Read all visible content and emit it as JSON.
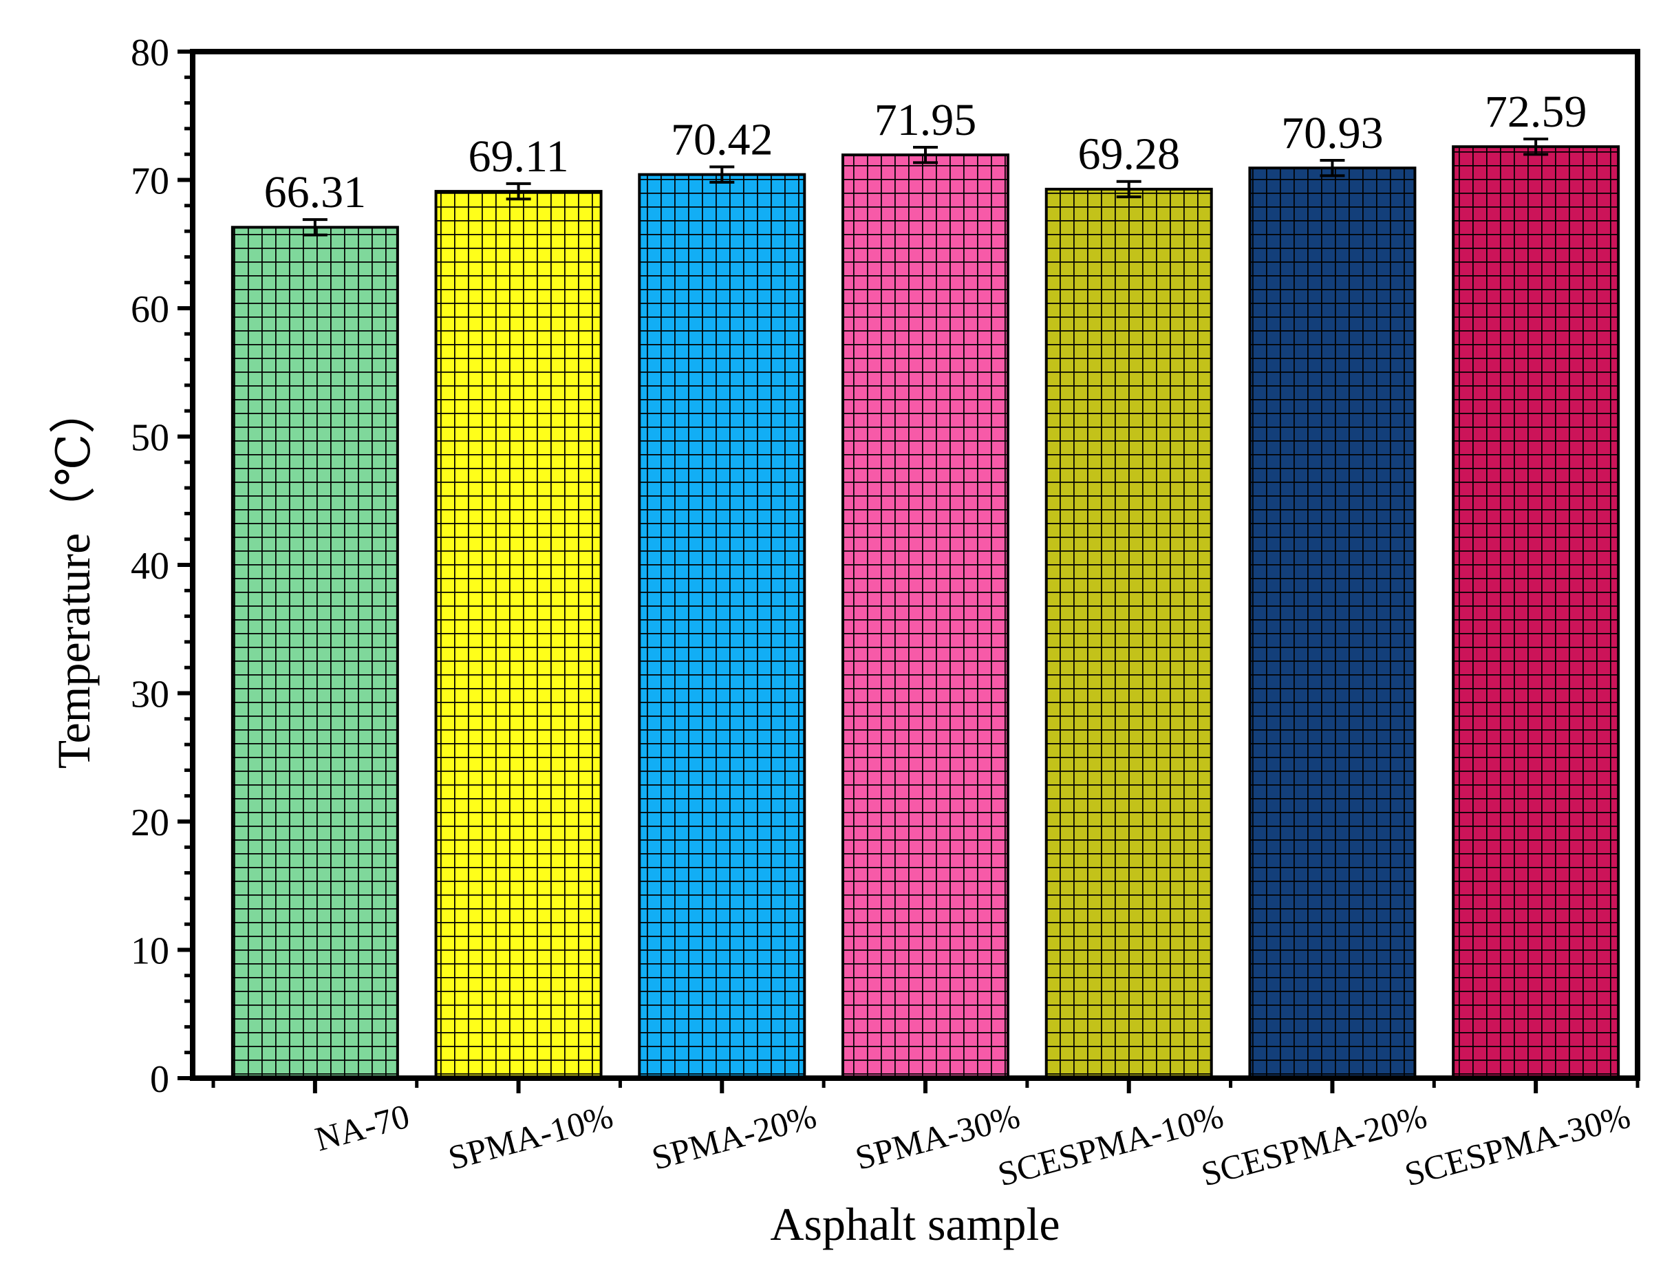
{
  "chart_data": {
    "type": "bar",
    "title": "",
    "xlabel": "Asphalt sample",
    "ylabel": "Temperature（℃）",
    "ylim": [
      0,
      80
    ],
    "yticks": [
      "0",
      "10",
      "20",
      "30",
      "40",
      "50",
      "60",
      "70",
      "80"
    ],
    "categories": [
      "NA-70",
      "SPMA-10%",
      "SPMA-20%",
      "SPMA-30%",
      "SCESPMA-10%",
      "SCESPMA-20%",
      "SCESPMA-30%"
    ],
    "values": [
      66.31,
      69.11,
      70.42,
      71.95,
      69.28,
      70.93,
      72.59
    ],
    "value_labels": [
      "66.31",
      "69.11",
      "70.42",
      "71.95",
      "69.28",
      "70.93",
      "72.59"
    ],
    "error": [
      0.6,
      0.6,
      0.6,
      0.6,
      0.6,
      0.6,
      0.6
    ],
    "colors": [
      "#7fd89b",
      "#ffff1a",
      "#12aef5",
      "#f75aa8",
      "#c3c21a",
      "#133f7a",
      "#cc1459"
    ],
    "pattern": "grid",
    "grid": false,
    "legend": "none"
  }
}
